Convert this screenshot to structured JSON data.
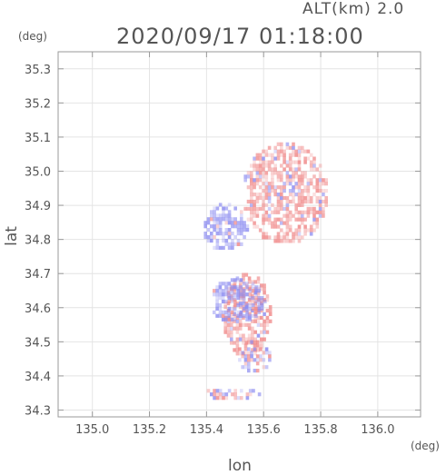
{
  "header": {
    "alt_label": "ALT(km) 2.0",
    "timestamp": "2020/09/17 01:18:00"
  },
  "axes": {
    "y_unit": "(deg)",
    "x_unit": "(deg)",
    "y_label": "lat",
    "x_label": "lon"
  },
  "chart_data": {
    "type": "heatmap",
    "xlim": [
      134.88,
      136.15
    ],
    "ylim": [
      34.28,
      35.35
    ],
    "x_ticks": [
      135.0,
      135.2,
      135.4,
      135.6,
      135.8,
      136.0
    ],
    "y_ticks": [
      34.3,
      34.4,
      34.5,
      34.6,
      34.7,
      34.8,
      34.9,
      35.0,
      35.1,
      35.2,
      35.3
    ],
    "grid": true,
    "colors": {
      "positive": "#f08a8a",
      "negative": "#8a8af0",
      "grid": "#e4e4e4",
      "frame": "#9a9a9a"
    },
    "regions": [
      {
        "sign": "negative",
        "lon": [
          135.38,
          135.54
        ],
        "lat": [
          34.76,
          34.9
        ]
      },
      {
        "sign": "positive",
        "lon": [
          135.52,
          135.82
        ],
        "lat": [
          34.78,
          35.08
        ]
      },
      {
        "sign": "positive",
        "lon": [
          135.45,
          135.62
        ],
        "lat": [
          34.45,
          34.7
        ]
      },
      {
        "sign": "negative",
        "lon": [
          135.4,
          135.6
        ],
        "lat": [
          34.55,
          34.68
        ]
      },
      {
        "sign": "mixed",
        "lon": [
          135.5,
          135.62
        ],
        "lat": [
          34.4,
          34.5
        ]
      },
      {
        "sign": "mixed",
        "lon": [
          135.38,
          135.58
        ],
        "lat": [
          34.32,
          34.36
        ]
      }
    ]
  }
}
